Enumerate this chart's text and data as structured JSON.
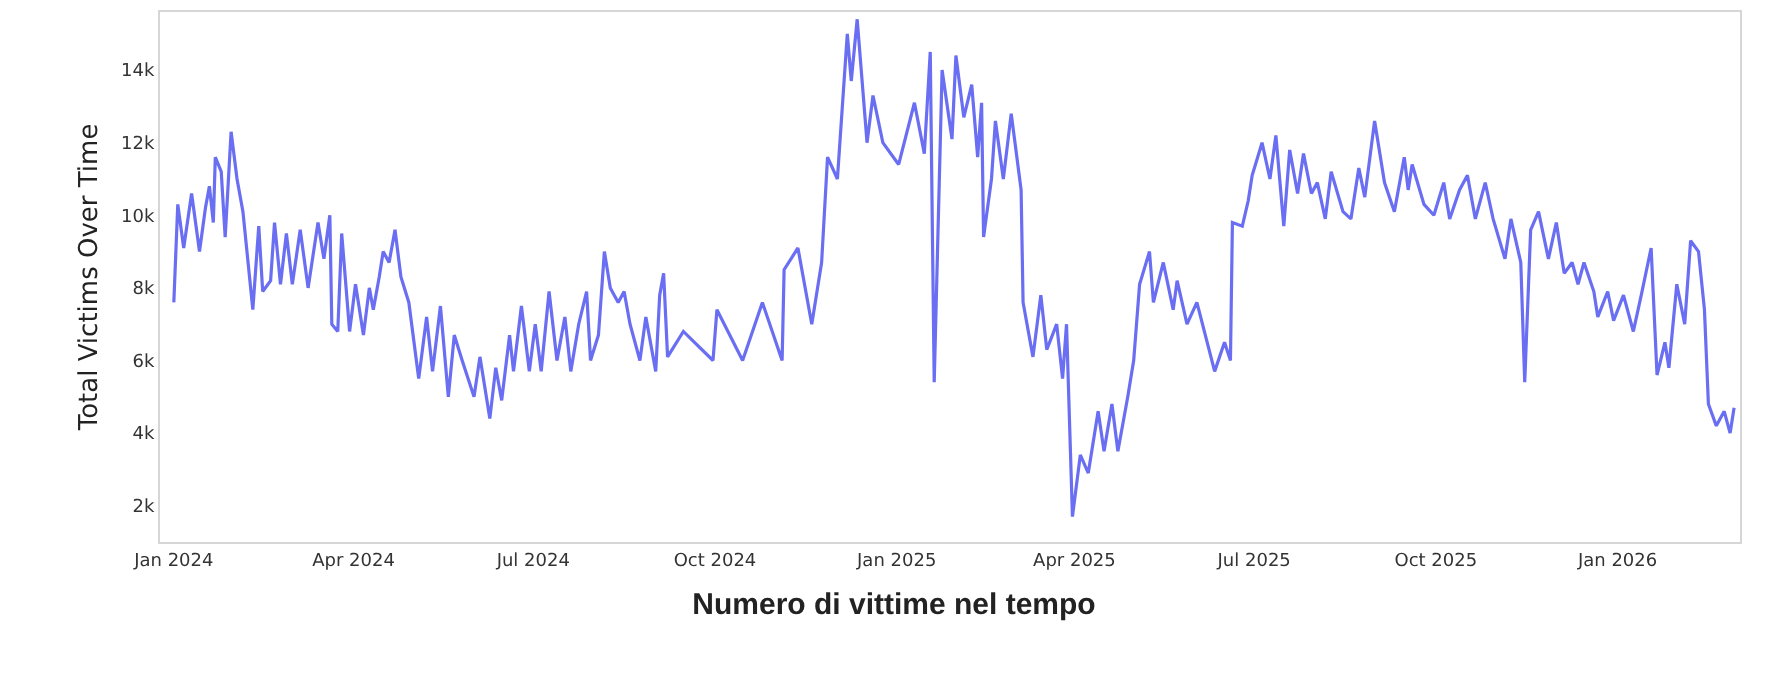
{
  "chart_data": {
    "type": "line",
    "title": "Numero di vittime nel tempo",
    "ylabel": "Total Victims Over Time",
    "x": [
      "2024-01-01",
      "2024-01-03",
      "2024-01-06",
      "2024-01-10",
      "2024-01-14",
      "2024-01-17",
      "2024-01-19",
      "2024-01-21",
      "2024-01-22",
      "2024-01-25",
      "2024-01-27",
      "2024-01-30",
      "2024-02-02",
      "2024-02-05",
      "2024-02-10",
      "2024-02-13",
      "2024-02-15",
      "2024-02-19",
      "2024-02-21",
      "2024-02-24",
      "2024-02-27",
      "2024-03-01",
      "2024-03-05",
      "2024-03-09",
      "2024-03-14",
      "2024-03-17",
      "2024-03-20",
      "2024-03-21",
      "2024-03-24",
      "2024-03-26",
      "2024-03-30",
      "2024-04-02",
      "2024-04-06",
      "2024-04-09",
      "2024-04-11",
      "2024-04-14",
      "2024-04-16",
      "2024-04-19",
      "2024-04-22",
      "2024-04-25",
      "2024-04-29",
      "2024-05-04",
      "2024-05-08",
      "2024-05-11",
      "2024-05-15",
      "2024-05-19",
      "2024-05-22",
      "2024-05-26",
      "2024-06-01",
      "2024-06-04",
      "2024-06-09",
      "2024-06-12",
      "2024-06-15",
      "2024-06-19",
      "2024-06-21",
      "2024-06-25",
      "2024-06-29",
      "2024-07-02",
      "2024-07-05",
      "2024-07-09",
      "2024-07-13",
      "2024-07-17",
      "2024-07-20",
      "2024-07-24",
      "2024-07-28",
      "2024-07-30",
      "2024-08-03",
      "2024-08-06",
      "2024-08-09",
      "2024-08-13",
      "2024-08-16",
      "2024-08-19",
      "2024-08-24",
      "2024-08-27",
      "2024-09-01",
      "2024-09-03",
      "2024-09-05",
      "2024-09-07",
      "2024-09-15",
      "2024-09-30",
      "2024-10-02",
      "2024-10-15",
      "2024-10-25",
      "2024-11-04",
      "2024-11-05",
      "2024-11-12",
      "2024-11-19",
      "2024-11-24",
      "2024-11-27",
      "2024-12-02",
      "2024-12-07",
      "2024-12-09",
      "2024-12-12",
      "2024-12-17",
      "2024-12-20",
      "2024-12-25",
      "2025-01-02",
      "2025-01-10",
      "2025-01-15",
      "2025-01-18",
      "2025-01-20",
      "2025-01-24",
      "2025-01-29",
      "2025-01-31",
      "2025-02-04",
      "2025-02-08",
      "2025-02-11",
      "2025-02-13",
      "2025-02-14",
      "2025-02-18",
      "2025-02-20",
      "2025-02-24",
      "2025-02-28",
      "2025-03-05",
      "2025-03-06",
      "2025-03-11",
      "2025-03-15",
      "2025-03-18",
      "2025-03-23",
      "2025-03-26",
      "2025-03-28",
      "2025-03-31",
      "2025-04-04",
      "2025-04-08",
      "2025-04-13",
      "2025-04-16",
      "2025-04-20",
      "2025-04-23",
      "2025-04-28",
      "2025-05-01",
      "2025-05-04",
      "2025-05-09",
      "2025-05-11",
      "2025-05-16",
      "2025-05-21",
      "2025-05-23",
      "2025-05-28",
      "2025-06-02",
      "2025-06-11",
      "2025-06-16",
      "2025-06-19",
      "2025-06-20",
      "2025-06-25",
      "2025-06-28",
      "2025-06-30",
      "2025-07-05",
      "2025-07-09",
      "2025-07-12",
      "2025-07-16",
      "2025-07-19",
      "2025-07-23",
      "2025-07-26",
      "2025-07-30",
      "2025-08-02",
      "2025-08-06",
      "2025-08-09",
      "2025-08-15",
      "2025-08-19",
      "2025-08-23",
      "2025-08-26",
      "2025-08-31",
      "2025-09-05",
      "2025-09-10",
      "2025-09-15",
      "2025-09-17",
      "2025-09-19",
      "2025-09-25",
      "2025-09-30",
      "2025-10-05",
      "2025-10-08",
      "2025-10-13",
      "2025-10-17",
      "2025-10-21",
      "2025-10-26",
      "2025-10-30",
      "2025-11-05",
      "2025-11-08",
      "2025-11-13",
      "2025-11-15",
      "2025-11-18",
      "2025-11-22",
      "2025-11-27",
      "2025-12-01",
      "2025-12-05",
      "2025-12-09",
      "2025-12-12",
      "2025-12-15",
      "2025-12-20",
      "2025-12-22",
      "2025-12-27",
      "2025-12-30",
      "2026-01-04",
      "2026-01-09",
      "2026-01-13",
      "2026-01-18",
      "2026-01-21",
      "2026-01-25",
      "2026-01-27",
      "2026-01-31",
      "2026-02-04",
      "2026-02-07",
      "2026-02-11",
      "2026-02-14",
      "2026-02-16",
      "2026-02-20",
      "2026-02-24",
      "2026-02-27",
      "2026-03-01"
    ],
    "series": [
      {
        "color": "#6a6ef2",
        "values": [
          7600,
          10300,
          9100,
          10600,
          9000,
          10200,
          10800,
          9800,
          11600,
          11200,
          9400,
          12300,
          11000,
          10100,
          7400,
          9700,
          7900,
          8200,
          9800,
          8100,
          9500,
          8100,
          9600,
          8000,
          9800,
          8800,
          10000,
          7000,
          6800,
          9500,
          6800,
          8100,
          6700,
          8000,
          7400,
          8300,
          9000,
          8700,
          9600,
          8300,
          7600,
          5500,
          7200,
          5700,
          7500,
          5000,
          6700,
          6000,
          5000,
          6100,
          4400,
          5800,
          4900,
          6700,
          5700,
          7500,
          5700,
          7000,
          5700,
          7900,
          6000,
          7200,
          5700,
          7000,
          7900,
          6000,
          6700,
          9000,
          8000,
          7600,
          7900,
          7000,
          6000,
          7200,
          5700,
          7800,
          8400,
          6100,
          6800,
          6000,
          7400,
          6000,
          7600,
          6000,
          8500,
          9100,
          7000,
          8700,
          11600,
          11000,
          15000,
          13700,
          15400,
          12000,
          13300,
          12000,
          11400,
          13100,
          11700,
          14500,
          5400,
          14000,
          12100,
          14400,
          12700,
          13600,
          11600,
          13100,
          9400,
          11000,
          12600,
          11000,
          12800,
          10700,
          7600,
          6100,
          7800,
          6300,
          7000,
          5500,
          7000,
          1700,
          3400,
          2900,
          4600,
          3500,
          4800,
          3500,
          5000,
          6000,
          8100,
          9000,
          7600,
          8700,
          7400,
          8200,
          7000,
          7600,
          5700,
          6500,
          6000,
          9800,
          9700,
          10400,
          11100,
          12000,
          11000,
          12200,
          9700,
          11800,
          10600,
          11700,
          10600,
          10900,
          9900,
          11200,
          10100,
          9900,
          11300,
          10500,
          12600,
          10900,
          10100,
          11600,
          10700,
          11400,
          10300,
          10000,
          10900,
          9900,
          10700,
          11100,
          9900,
          10900,
          9900,
          8800,
          9900,
          8700,
          5400,
          9600,
          10100,
          8800,
          9800,
          8400,
          8700,
          8100,
          8700,
          7900,
          7200,
          7900,
          7100,
          7800,
          6800,
          7800,
          9100,
          5600,
          6500,
          5800,
          8100,
          7000,
          9300,
          9000,
          7400,
          4800,
          4200,
          4600,
          4000,
          4700
        ]
      }
    ],
    "xlim": [
      "2023-12-25",
      "2026-03-04"
    ],
    "xticks": [
      {
        "value": "2024-01-01",
        "label": "Jan 2024"
      },
      {
        "value": "2024-04-01",
        "label": "Apr 2024"
      },
      {
        "value": "2024-07-01",
        "label": "Jul 2024"
      },
      {
        "value": "2024-10-01",
        "label": "Oct 2024"
      },
      {
        "value": "2025-01-01",
        "label": "Jan 2025"
      },
      {
        "value": "2025-04-01",
        "label": "Apr 2025"
      },
      {
        "value": "2025-07-01",
        "label": "Jul 2025"
      },
      {
        "value": "2025-10-01",
        "label": "Oct 2025"
      },
      {
        "value": "2026-01-01",
        "label": "Jan 2026"
      }
    ],
    "ylim": [
      1000,
      15600
    ],
    "yticks": [
      {
        "value": 2000,
        "label": "2k"
      },
      {
        "value": 4000,
        "label": "4k"
      },
      {
        "value": 6000,
        "label": "6k"
      },
      {
        "value": 8000,
        "label": "8k"
      },
      {
        "value": 10000,
        "label": "10k"
      },
      {
        "value": 12000,
        "label": "12k"
      },
      {
        "value": 14000,
        "label": "14k"
      }
    ],
    "marker": "none",
    "line_style": "solid"
  }
}
